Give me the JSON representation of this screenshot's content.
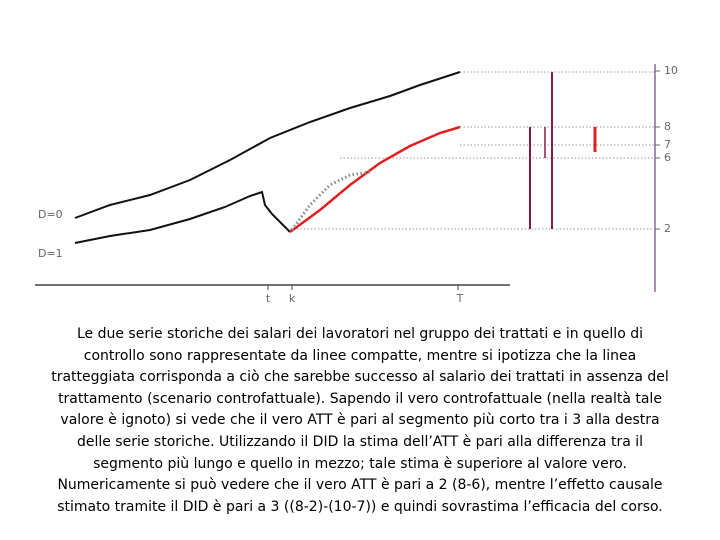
{
  "labels": {
    "group_control": "D=0",
    "group_treated": "D=1",
    "time_t": "t",
    "time_k": "k",
    "time_end": "Τ"
  },
  "axis_ticks": [
    "10",
    "8",
    "7",
    "6",
    "2"
  ],
  "caption": [
    "Le due serie storiche dei salari dei lavoratori nel gruppo dei trattati e in quello di",
    "controllo sono rappresentate da linee compatte, mentre si ipotizza che la linea",
    "tratteggiata corrisponda a ciò che sarebbe successo al salario dei trattati in assenza del",
    "trattamento (scenario controfattuale). Sapendo il vero controfattuale (nella realtà tale",
    "valore è ignoto) si vede che il vero ATT è pari al segmento più corto tra i 3 alla destra",
    "delle serie storiche. Utilizzando il DID la stima dell’ATT è pari alla differenza tra il",
    "segmento più lungo e quello in mezzo; tale stima è superiore al valore vero.",
    "Numericamente si può vedere che il vero ATT è pari a 2 (8-6), mentre l’effetto causale",
    "stimato tramite il DID è pari a 3 ((8-2)-(10-7)) e quindi sovrastima l’efficacia del corso."
  ]
}
